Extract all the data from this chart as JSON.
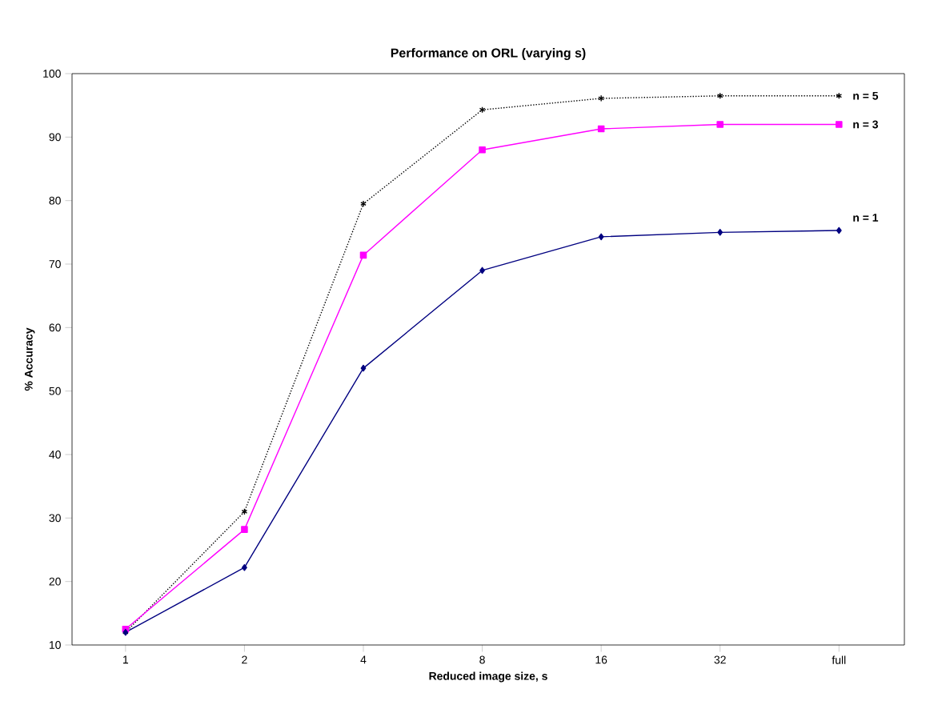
{
  "chart_data": {
    "type": "line",
    "title": "Performance on ORL (varying s)",
    "xlabel": "Reduced image size, s",
    "ylabel": "% Accuracy",
    "categories": [
      "1",
      "2",
      "4",
      "8",
      "16",
      "32",
      "full"
    ],
    "ylim": [
      10,
      100
    ],
    "yticks": [
      10,
      20,
      30,
      40,
      50,
      60,
      70,
      80,
      90,
      100
    ],
    "grid": false,
    "series": [
      {
        "name": "n = 5",
        "color": "#000000",
        "marker": "cross",
        "line_style": "dotted",
        "values": [
          12,
          31,
          79.5,
          94.3,
          96.1,
          96.5,
          96.5
        ]
      },
      {
        "name": "n = 3",
        "color": "#ff00ff",
        "marker": "square",
        "line_style": "solid",
        "values": [
          12.5,
          28.2,
          71.4,
          88,
          91.3,
          92,
          92
        ]
      },
      {
        "name": "n = 1",
        "color": "#000080",
        "marker": "diamond",
        "line_style": "solid",
        "values": [
          12,
          22.2,
          53.6,
          69,
          74.3,
          75,
          75.3
        ]
      }
    ]
  }
}
